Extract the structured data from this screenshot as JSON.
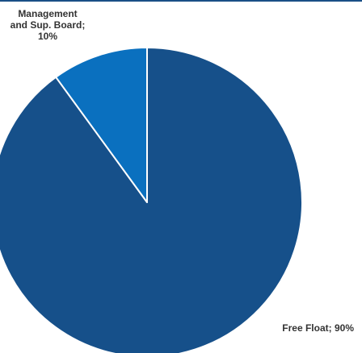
{
  "chart_data": {
    "type": "pie",
    "categories": [
      "Free Float",
      "Management and Sup. Board"
    ],
    "values": [
      90,
      10
    ],
    "labels": [
      [
        "Free Float; 90%"
      ],
      [
        "Management",
        "and Sup. Board;",
        "10%"
      ]
    ],
    "colors": [
      "#16508a",
      "#0a70bf"
    ],
    "slice_border_color": "#ffffff",
    "header_rule_color": "#1a4f86",
    "start_angle_deg": 0,
    "direction": "clockwise",
    "title": "",
    "legend": "none"
  }
}
